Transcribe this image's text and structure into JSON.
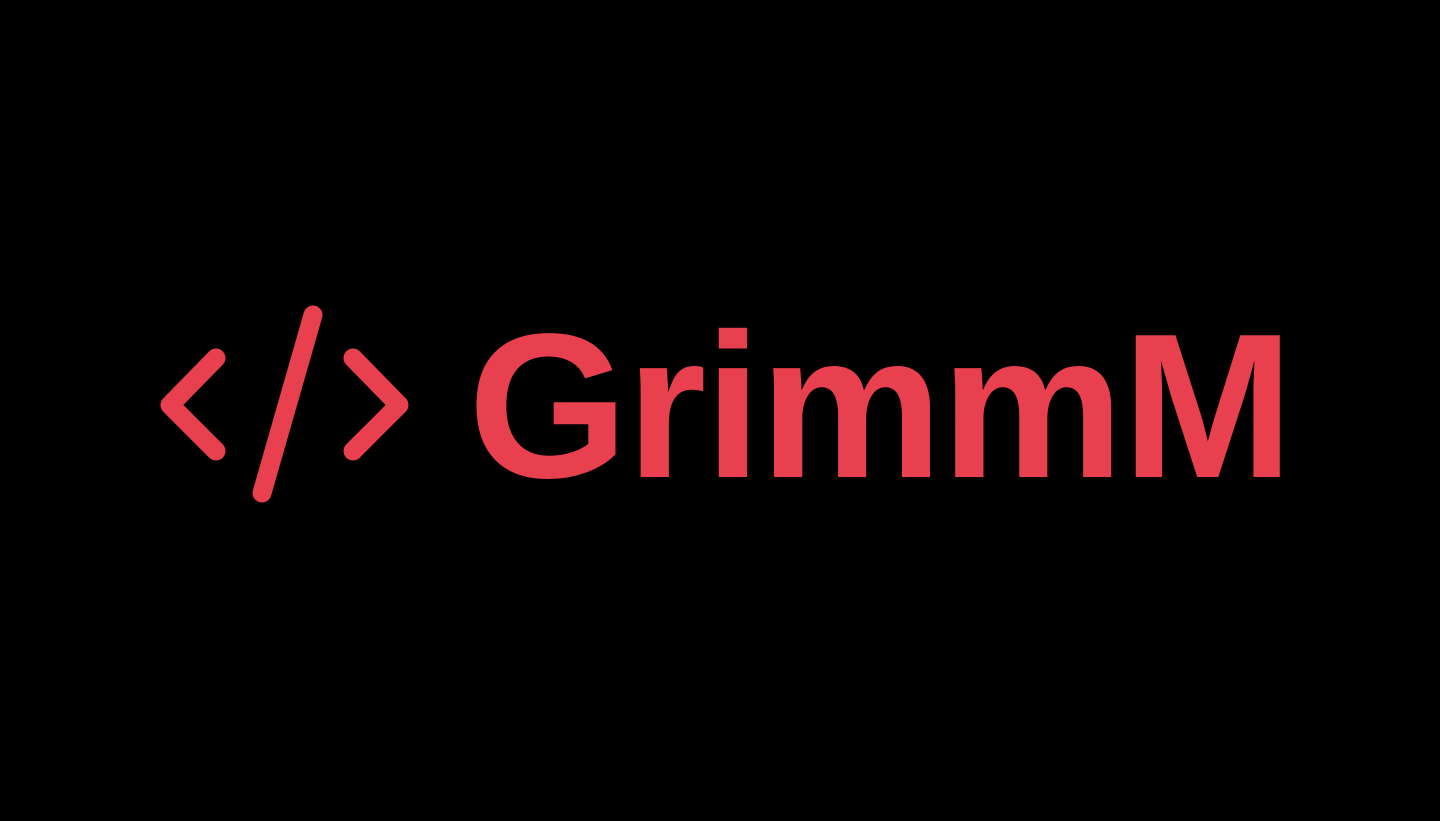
{
  "brand": {
    "name": "GrimmM",
    "color": "#E8404E",
    "background": "#000000",
    "mark_icon": "code-brackets-icon"
  }
}
